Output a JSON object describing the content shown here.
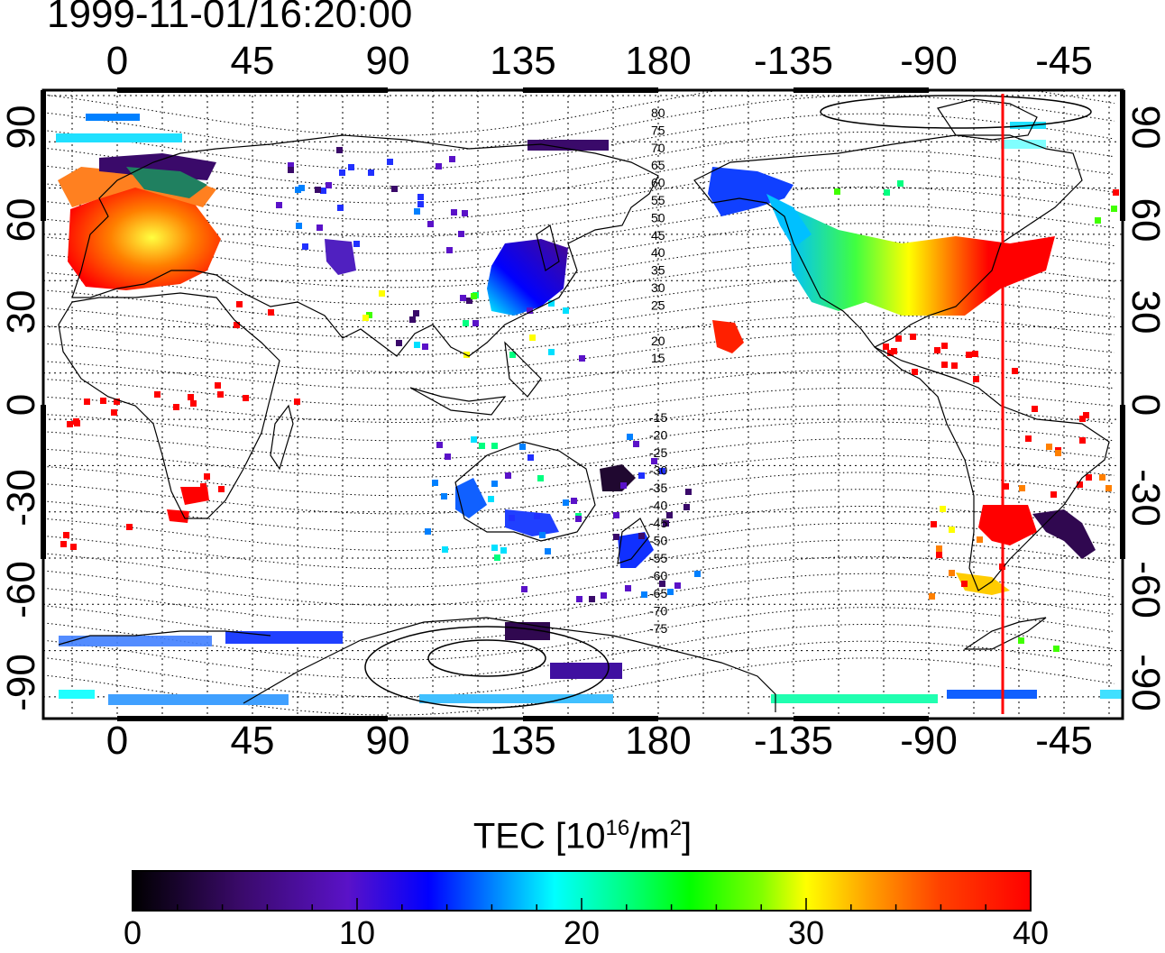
{
  "timestamp": "1999-11-01/16:20:00",
  "map": {
    "lon_ticks": [
      "0",
      "45",
      "90",
      "135",
      "180",
      "-135",
      "-90",
      "-45"
    ],
    "lat_ticks": [
      "90",
      "60",
      "30",
      "0",
      "-30",
      "-60",
      "-90"
    ],
    "contour_labels": [
      "80",
      "75",
      "70",
      "65",
      "60",
      "55",
      "50",
      "45",
      "40",
      "35",
      "30",
      "25",
      "20",
      "15",
      "-15",
      "-20",
      "-25",
      "-30",
      "-35",
      "-40",
      "-45",
      "-50",
      "-55",
      "-60",
      "-65",
      "-70",
      "-75"
    ],
    "terminator_longitude": -69,
    "colors": {
      "terminator": "#ff0000",
      "frame": "#000000"
    }
  },
  "colorbar": {
    "title_prefix": "TEC  [10",
    "title_exp1": "16",
    "title_mid": "/m",
    "title_exp2": "2",
    "title_suffix": "]",
    "ticks": [
      "0",
      "10",
      "20",
      "30",
      "40"
    ],
    "min": 0,
    "max": 40
  }
}
